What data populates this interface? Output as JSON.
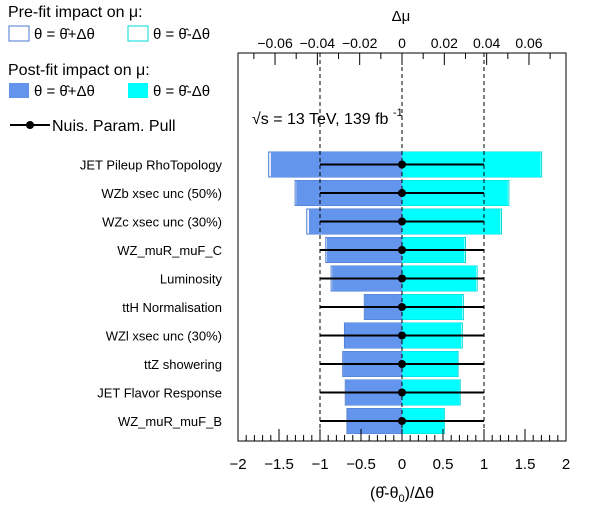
{
  "chart_data": {
    "type": "bar",
    "annotation": "√s = 13 TeV, 139 fb",
    "annotation_sup": "-1",
    "xlabel": "(θ̂-θ0)/Δθ",
    "xlabel_parts": {
      "prefix": "(θ̂-θ",
      "sub": "0",
      "suffix": ")/Δθ"
    },
    "xlim": [
      -2,
      2
    ],
    "xticks": [
      "−2",
      "−1.5",
      "−1",
      "−0.5",
      "0",
      "0.5",
      "1",
      "1.5",
      "2"
    ],
    "top_axis_label": "Δμ",
    "top_xlim": [
      -0.0775,
      0.0775
    ],
    "top_xticks": [
      {
        "value": -0.06,
        "label": "−0.06"
      },
      {
        "value": -0.04,
        "label": "−0.04"
      },
      {
        "value": -0.02,
        "label": "−0.02"
      },
      {
        "value": 0,
        "label": "0"
      },
      {
        "value": 0.02,
        "label": "0.02"
      },
      {
        "value": 0.04,
        "label": "0.04"
      },
      {
        "value": 0.06,
        "label": "0.06"
      }
    ],
    "categories": [
      "JET Pileup RhoTopology",
      "WZb xsec unc (50%)",
      "WZc xsec unc (30%)",
      "WZ_muR_muF_C",
      "Luminosity",
      "ttH Normalisation",
      "WZl xsec unc (30%)",
      "ttZ showering",
      "JET Flavor Response",
      "WZ_muR_muF_B"
    ],
    "series": [
      {
        "name": "θ = θ̂+Δθ",
        "kind": "prefit-up",
        "values": [
          -0.063,
          -0.0505,
          -0.045,
          -0.036,
          -0.0335,
          -0.0178,
          -0.0272,
          -0.028,
          -0.0268,
          -0.026
        ]
      },
      {
        "name": "θ = θ̂-Δθ",
        "kind": "prefit-down",
        "values": [
          0.066,
          0.0505,
          0.047,
          0.03,
          0.0355,
          0.029,
          0.0285,
          0.0265,
          0.0275,
          0.02
        ]
      },
      {
        "name": "θ = θ̂+Δθ",
        "kind": "postfit-up",
        "values": [
          -0.062,
          -0.05,
          -0.044,
          -0.0355,
          -0.033,
          -0.0175,
          -0.027,
          -0.0278,
          -0.0265,
          -0.0258
        ]
      },
      {
        "name": "θ = θ̂-Δθ",
        "kind": "postfit-down",
        "values": [
          0.0655,
          0.05,
          0.0465,
          0.0295,
          0.035,
          0.0285,
          0.028,
          0.0262,
          0.0272,
          0.0198
        ]
      }
    ],
    "pulls": {
      "name": "Nuis. Param. Pull",
      "values": [
        0,
        0,
        0,
        0,
        0,
        0,
        0,
        0,
        0,
        0
      ],
      "errors_low": [
        1,
        1,
        1,
        1,
        1,
        1,
        1,
        1,
        1,
        1
      ],
      "errors_high": [
        1,
        1,
        1,
        1,
        1,
        1,
        1,
        1,
        1,
        1
      ]
    },
    "reference_lines": [
      -1,
      0,
      1
    ],
    "legend": {
      "prefit_title": "Pre-fit impact on  μ:",
      "postfit_title": "Post-fit impact on  μ:",
      "up_label": "θ = θ̂+Δθ",
      "down_label": "θ = θ̂-Δθ",
      "pull_label": "Nuis. Param. Pull",
      "placement": "top-left"
    },
    "colors": {
      "up": "#6495ED",
      "down": "#00FFFF",
      "prefit_up_outline": "#4A7BD0",
      "prefit_down_outline": "#00D8D8",
      "pull": "#000000",
      "dashed": "#000000"
    }
  }
}
